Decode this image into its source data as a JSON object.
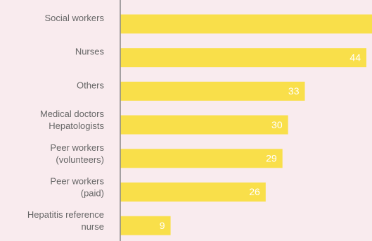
{
  "chart_data": {
    "type": "hbar",
    "categories": [
      [
        "Social workers"
      ],
      [
        "Nurses"
      ],
      [
        "Others"
      ],
      [
        "Medical doctors",
        "Hepatologists"
      ],
      [
        "Peer workers",
        "(volunteers)"
      ],
      [
        "Peer workers",
        "(paid)"
      ],
      [
        "Hepatitis reference",
        "nurse"
      ]
    ],
    "values": [
      48,
      44,
      33,
      30,
      29,
      26,
      9
    ],
    "color": "#f9df4a",
    "xlim": [
      0,
      50
    ]
  }
}
